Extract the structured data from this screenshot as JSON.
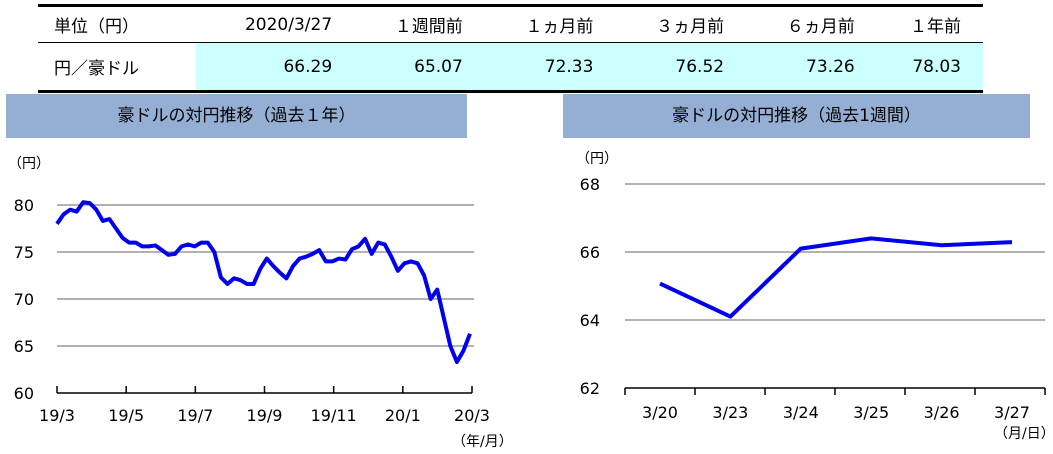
{
  "table": {
    "header": [
      "単位（円）",
      "2020/3/27",
      "１週間前",
      "１ヵ月前",
      "３ヵ月前",
      "６ヵ月前",
      "１年前"
    ],
    "row_label": "円／豪ドル",
    "values": [
      "66.29",
      "65.07",
      "72.33",
      "76.52",
      "73.26",
      "78.03"
    ]
  },
  "chart_data": [
    {
      "type": "line",
      "title": "豪ドルの対円推移（過去１年）",
      "ylabel": "（円）",
      "xlabel": "（年/月）",
      "ylim": [
        60,
        80
      ],
      "yticks": [
        "60",
        "65",
        "70",
        "75",
        "80"
      ],
      "xticks": [
        "19/3",
        "19/5",
        "19/7",
        "19/9",
        "19/11",
        "20/1",
        "20/3"
      ],
      "color": "#0000ee",
      "values": [
        78.0,
        79.0,
        79.5,
        79.3,
        80.3,
        80.2,
        79.5,
        78.3,
        78.5,
        77.5,
        76.5,
        76.0,
        76.0,
        75.6,
        75.6,
        75.7,
        75.2,
        74.7,
        74.8,
        75.6,
        75.8,
        75.6,
        76.0,
        76.0,
        75.0,
        72.3,
        71.6,
        72.2,
        72.0,
        71.6,
        71.6,
        73.2,
        74.3,
        73.5,
        72.8,
        72.2,
        73.5,
        74.3,
        74.5,
        74.8,
        75.2,
        74.0,
        74.0,
        74.3,
        74.2,
        75.3,
        75.6,
        76.4,
        74.8,
        76.0,
        75.8,
        74.5,
        73.0,
        73.8,
        74.0,
        73.8,
        72.5,
        70.0,
        71.0,
        68.0,
        65.0,
        63.3,
        64.5,
        66.3
      ]
    },
    {
      "type": "line",
      "title": "豪ドルの対円推移（過去1週間）",
      "ylabel": "（円）",
      "xlabel": "（月/日）",
      "ylim": [
        62,
        68
      ],
      "yticks": [
        "62",
        "64",
        "66",
        "68"
      ],
      "categories": [
        "3/20",
        "3/23",
        "3/24",
        "3/25",
        "3/26",
        "3/27"
      ],
      "values": [
        65.07,
        64.1,
        66.1,
        66.4,
        66.2,
        66.29
      ],
      "color": "#0000ee"
    }
  ]
}
